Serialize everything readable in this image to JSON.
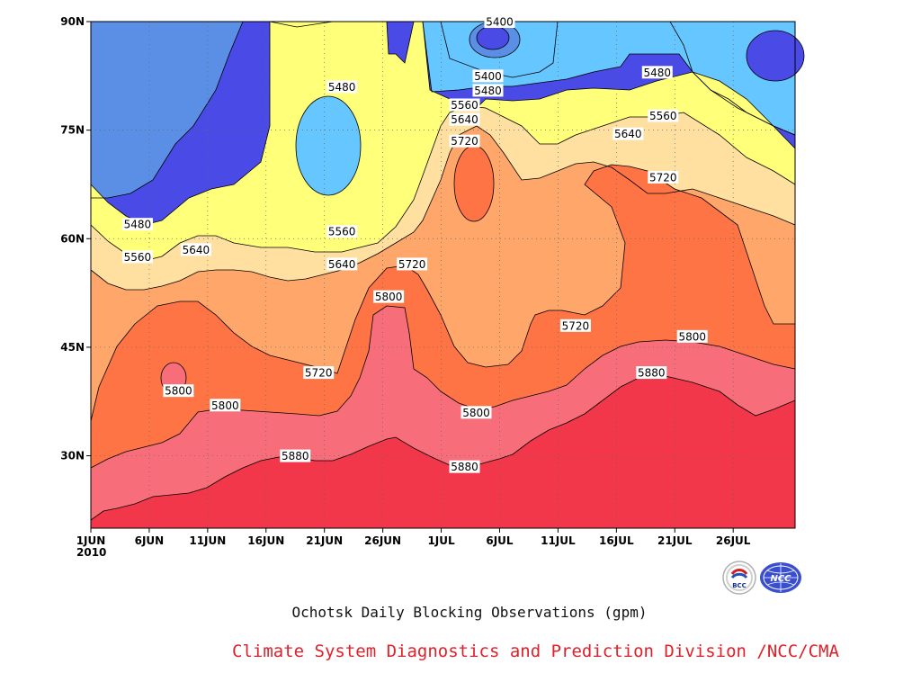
{
  "chart_data": {
    "type": "contour",
    "title": "Ochotsk Daily Blocking Observations (gpm)",
    "credit": "Climate System Diagnostics and Prediction Division /NCC/CMA",
    "x_tick_labels": [
      "1JUN",
      "6JUN",
      "11JUN",
      "16JUN",
      "21JUN",
      "26JUN",
      "1JUL",
      "6JUL",
      "11JUL",
      "16JUL",
      "21JUL",
      "26JUL"
    ],
    "x_year_label": "2010",
    "y_tick_labels": [
      "30N",
      "45N",
      "60N",
      "75N",
      "90N"
    ],
    "y_ticks_deg": [
      30,
      45,
      60,
      75,
      90
    ],
    "ylim_deg": [
      20,
      90
    ],
    "xlim_days": [
      0,
      60
    ],
    "contour_levels": [
      5400,
      5480,
      5560,
      5640,
      5720,
      5800,
      5880
    ],
    "grid": true,
    "colors": {
      "below_5400": "#4a4ae6",
      "5400_5480": "#5b8fe6",
      "5480_5560": "#66c6ff",
      "5560_5640": "#ffff7a",
      "5640_5720": "#ffe0a0",
      "5720_5800": "#ffa66b",
      "5800_5880": "#ff7444",
      "5880_5960": "#f76e7a",
      "above_5960": "#f2374a"
    },
    "contour_labels": [
      {
        "day": 35,
        "lat": 90,
        "value": "5400"
      },
      {
        "day": 34,
        "lat": 82.5,
        "value": "5400"
      },
      {
        "day": 34,
        "lat": 80.5,
        "value": "5480"
      },
      {
        "day": 48.5,
        "lat": 83,
        "value": "5480"
      },
      {
        "day": 21.5,
        "lat": 81,
        "value": "5480"
      },
      {
        "day": 4,
        "lat": 62,
        "value": "5480"
      },
      {
        "day": 32,
        "lat": 78.5,
        "value": "5560"
      },
      {
        "day": 49,
        "lat": 77,
        "value": "5560"
      },
      {
        "day": 21.5,
        "lat": 61,
        "value": "5560"
      },
      {
        "day": 4,
        "lat": 57.5,
        "value": "5560"
      },
      {
        "day": 32,
        "lat": 76.5,
        "value": "5640"
      },
      {
        "day": 46,
        "lat": 74.5,
        "value": "5640"
      },
      {
        "day": 9,
        "lat": 58.5,
        "value": "5640"
      },
      {
        "day": 21.5,
        "lat": 56.5,
        "value": "5640"
      },
      {
        "day": 32,
        "lat": 73.5,
        "value": "5720"
      },
      {
        "day": 49,
        "lat": 68.5,
        "value": "5720"
      },
      {
        "day": 27.5,
        "lat": 56.5,
        "value": "5720"
      },
      {
        "day": 19.5,
        "lat": 41.5,
        "value": "5720"
      },
      {
        "day": 41.5,
        "lat": 48,
        "value": "5720"
      },
      {
        "day": 25.5,
        "lat": 52,
        "value": "5800"
      },
      {
        "day": 7.5,
        "lat": 39,
        "value": "5800"
      },
      {
        "day": 11.5,
        "lat": 37,
        "value": "5800"
      },
      {
        "day": 33,
        "lat": 36,
        "value": "5800"
      },
      {
        "day": 51.5,
        "lat": 46.5,
        "value": "5800"
      },
      {
        "day": 17.5,
        "lat": 30,
        "value": "5880"
      },
      {
        "day": 32,
        "lat": 28.5,
        "value": "5880"
      },
      {
        "day": 48,
        "lat": 41.5,
        "value": "5880"
      }
    ]
  },
  "logos": {
    "left": "BCC",
    "right": "NCC"
  }
}
